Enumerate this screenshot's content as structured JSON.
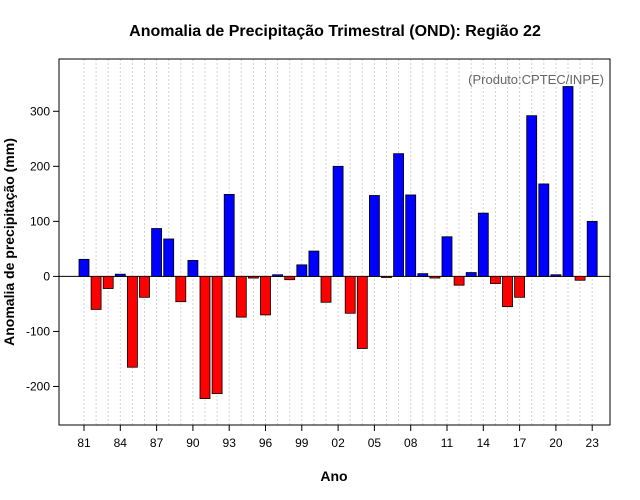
{
  "chart_data": {
    "type": "bar",
    "title": "Anomalia de Precipitação Trimestral (OND): Região 22",
    "credit": "(Produto:CPTEC/INPE)",
    "xlabel": "Ano",
    "ylabel": "Anomalia de precipitação (mm)",
    "ylim": [
      -270,
      395
    ],
    "yticks": [
      -200,
      -100,
      0,
      100,
      200,
      300
    ],
    "categories": [
      1981,
      1982,
      1983,
      1984,
      1985,
      1986,
      1987,
      1988,
      1989,
      1990,
      1991,
      1992,
      1993,
      1994,
      1995,
      1996,
      1997,
      1998,
      1999,
      2000,
      2001,
      2002,
      2003,
      2004,
      2005,
      2006,
      2007,
      2008,
      2009,
      2010,
      2011,
      2012,
      2013,
      2014,
      2015,
      2016,
      2017,
      2018,
      2019,
      2020,
      2021,
      2022,
      2023
    ],
    "values": [
      31,
      -60,
      -22,
      4,
      -165,
      -38,
      87,
      68,
      -46,
      29,
      -222,
      -213,
      149,
      -74,
      -3,
      -70,
      3,
      -6,
      21,
      46,
      -47,
      200,
      -67,
      -131,
      147,
      -2,
      223,
      148,
      5,
      -3,
      72,
      -16,
      7,
      115,
      -13,
      -55,
      -38,
      292,
      168,
      3,
      345,
      -7,
      100
    ],
    "tick_labels": [
      "81",
      "84",
      "87",
      "90",
      "93",
      "96",
      "99",
      "02",
      "05",
      "08",
      "11",
      "14",
      "17",
      "20",
      "23"
    ],
    "tick_years": [
      1981,
      1984,
      1987,
      1990,
      1993,
      1996,
      1999,
      2002,
      2005,
      2008,
      2011,
      2014,
      2017,
      2020,
      2023
    ],
    "positive_color": "#0000ff",
    "negative_color": "#ff0000",
    "grid": true
  }
}
